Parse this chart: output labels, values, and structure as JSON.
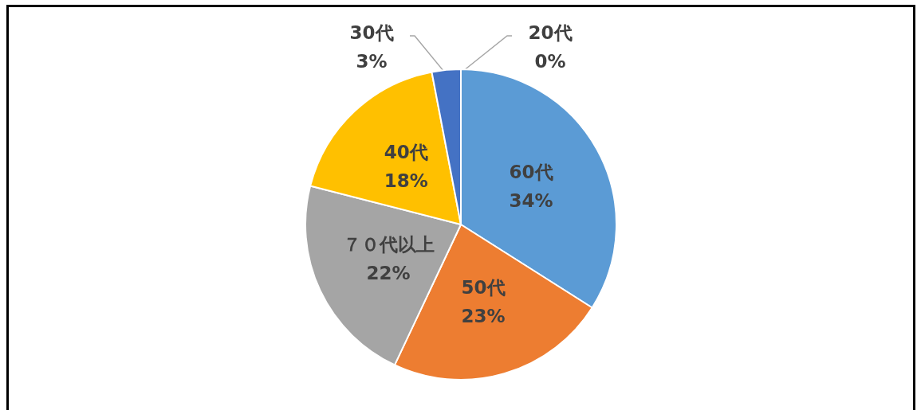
{
  "chart_data": {
    "type": "pie",
    "categories": [
      "20代",
      "60代",
      "50代",
      "７０代以上",
      "40代",
      "30代"
    ],
    "values": [
      0,
      34,
      23,
      22,
      18,
      3
    ],
    "value_labels": [
      "0%",
      "34%",
      "23%",
      "22%",
      "18%",
      "3%"
    ],
    "colors": [
      "#70ad47",
      "#5b9bd5",
      "#ed7d31",
      "#a5a5a5",
      "#ffc000",
      "#4472c4"
    ],
    "legend": false
  }
}
